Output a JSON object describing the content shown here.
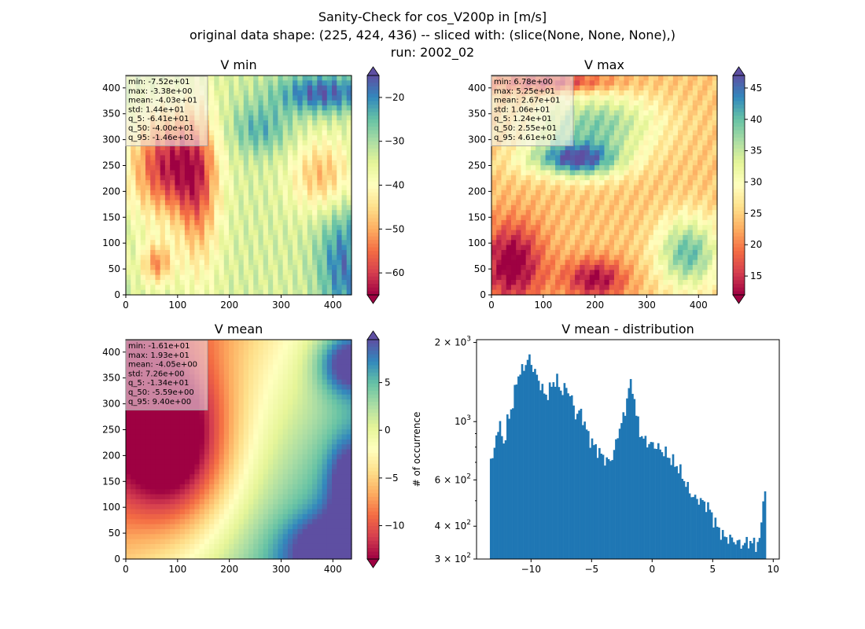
{
  "figure": {
    "title_lines": [
      "Sanity-Check for cos_V200p in [m/s]",
      "original data shape: (225, 424, 436) -- sliced with: (slice(None, None, None),)",
      "run: 2002_02"
    ]
  },
  "chart_data": [
    {
      "id": "vmin",
      "type": "heatmap",
      "title": "V min",
      "x_ticks": [
        0,
        100,
        200,
        300,
        400
      ],
      "y_ticks": [
        0,
        50,
        100,
        150,
        200,
        250,
        300,
        350,
        400
      ],
      "xlim": [
        0,
        436
      ],
      "ylim": [
        0,
        424
      ],
      "colormap": "Spectral",
      "colorbar": {
        "ticks": [
          -20,
          -30,
          -40,
          -50,
          -60
        ],
        "range": [
          -65,
          -15
        ]
      },
      "stats": [
        "min: -7.52e+01",
        "max: -3.38e+00",
        "mean: -4.03e+01",
        "std: 1.44e+01",
        "q_5: -6.41e+01",
        "q_50: -4.00e+01",
        "q_95: -1.46e+01"
      ]
    },
    {
      "id": "vmax",
      "type": "heatmap",
      "title": "V max",
      "x_ticks": [
        0,
        100,
        200,
        300,
        400
      ],
      "y_ticks": [
        0,
        50,
        100,
        150,
        200,
        250,
        300,
        350,
        400
      ],
      "xlim": [
        0,
        436
      ],
      "ylim": [
        0,
        424
      ],
      "colormap": "Spectral",
      "colorbar": {
        "ticks": [
          45,
          40,
          35,
          30,
          25,
          20,
          15
        ],
        "range": [
          12,
          47
        ]
      },
      "stats": [
        "min: 6.78e+00",
        "max: 5.25e+01",
        "mean: 2.67e+01",
        "std: 1.06e+01",
        "q_5: 1.24e+01",
        "q_50: 2.55e+01",
        "q_95: 4.61e+01"
      ]
    },
    {
      "id": "vmean",
      "type": "heatmap",
      "title": "V mean",
      "x_ticks": [
        0,
        100,
        200,
        300,
        400
      ],
      "y_ticks": [
        0,
        50,
        100,
        150,
        200,
        250,
        300,
        350,
        400
      ],
      "xlim": [
        0,
        436
      ],
      "ylim": [
        0,
        424
      ],
      "colormap": "Spectral",
      "colorbar": {
        "ticks": [
          5,
          0,
          -5,
          -10
        ],
        "range": [
          -13.5,
          9.5
        ]
      },
      "stats": [
        "min: -1.61e+01",
        "max: 1.93e+01",
        "mean: -4.05e+00",
        "std: 7.26e+00",
        "q_5: -1.34e+01",
        "q_50: -5.59e+00",
        "q_95: 9.40e+00"
      ]
    },
    {
      "id": "hist",
      "type": "bar",
      "title": "V mean - distribution",
      "ylabel": "# of occurrence",
      "y_scale": "log",
      "x_ticks": [
        -10,
        -5,
        0,
        5,
        10
      ],
      "xlim": [
        -14.5,
        10.5
      ],
      "ylim": [
        300,
        2050
      ],
      "y_tick_values": [
        300,
        400,
        600,
        1000,
        2000
      ],
      "y_tick_labels": [
        {
          "base": "3 × 10",
          "exp": "2"
        },
        {
          "base": "4 × 10",
          "exp": "2"
        },
        {
          "base": "6 × 10",
          "exp": "2"
        },
        {
          "base": "10",
          "exp": "3"
        },
        {
          "base": "2 × 10",
          "exp": "3"
        }
      ],
      "bar_color": "#1f77b4",
      "bin_range": [
        -13.4,
        9.4
      ],
      "bin_count": 150,
      "profile": [
        [
          -13.4,
          750
        ],
        [
          -13.2,
          680
        ],
        [
          -12.9,
          900
        ],
        [
          -12.5,
          960
        ],
        [
          -12.2,
          800
        ],
        [
          -11.9,
          1050
        ],
        [
          -11.5,
          1150
        ],
        [
          -11.2,
          1450
        ],
        [
          -10.8,
          1550
        ],
        [
          -10.5,
          1650
        ],
        [
          -10.1,
          1750
        ],
        [
          -9.8,
          1580
        ],
        [
          -9.4,
          1450
        ],
        [
          -9.0,
          1300
        ],
        [
          -8.7,
          1250
        ],
        [
          -8.3,
          1380
        ],
        [
          -7.9,
          1450
        ],
        [
          -7.5,
          1300
        ],
        [
          -7.1,
          1350
        ],
        [
          -6.7,
          1250
        ],
        [
          -6.3,
          1050
        ],
        [
          -5.9,
          1100
        ],
        [
          -5.5,
          950
        ],
        [
          -5.1,
          850
        ],
        [
          -4.7,
          800
        ],
        [
          -4.3,
          760
        ],
        [
          -3.9,
          720
        ],
        [
          -3.5,
          700
        ],
        [
          -3.1,
          780
        ],
        [
          -2.7,
          950
        ],
        [
          -2.3,
          1050
        ],
        [
          -1.9,
          1380
        ],
        [
          -1.6,
          1350
        ],
        [
          -1.3,
          1050
        ],
        [
          -0.9,
          880
        ],
        [
          -0.5,
          840
        ],
        [
          -0.1,
          820
        ],
        [
          0.3,
          810
        ],
        [
          0.7,
          780
        ],
        [
          1.1,
          760
        ],
        [
          1.5,
          720
        ],
        [
          1.9,
          690
        ],
        [
          2.3,
          650
        ],
        [
          2.7,
          590
        ],
        [
          3.1,
          540
        ],
        [
          3.5,
          510
        ],
        [
          3.9,
          505
        ],
        [
          4.3,
          490
        ],
        [
          4.7,
          470
        ],
        [
          5.1,
          420
        ],
        [
          5.5,
          390
        ],
        [
          5.9,
          365
        ],
        [
          6.3,
          360
        ],
        [
          6.7,
          355
        ],
        [
          7.1,
          345
        ],
        [
          7.5,
          340
        ],
        [
          7.9,
          350
        ],
        [
          8.3,
          345
        ],
        [
          8.7,
          340
        ],
        [
          9.0,
          380
        ],
        [
          9.2,
          560
        ],
        [
          9.4,
          520
        ]
      ]
    }
  ]
}
